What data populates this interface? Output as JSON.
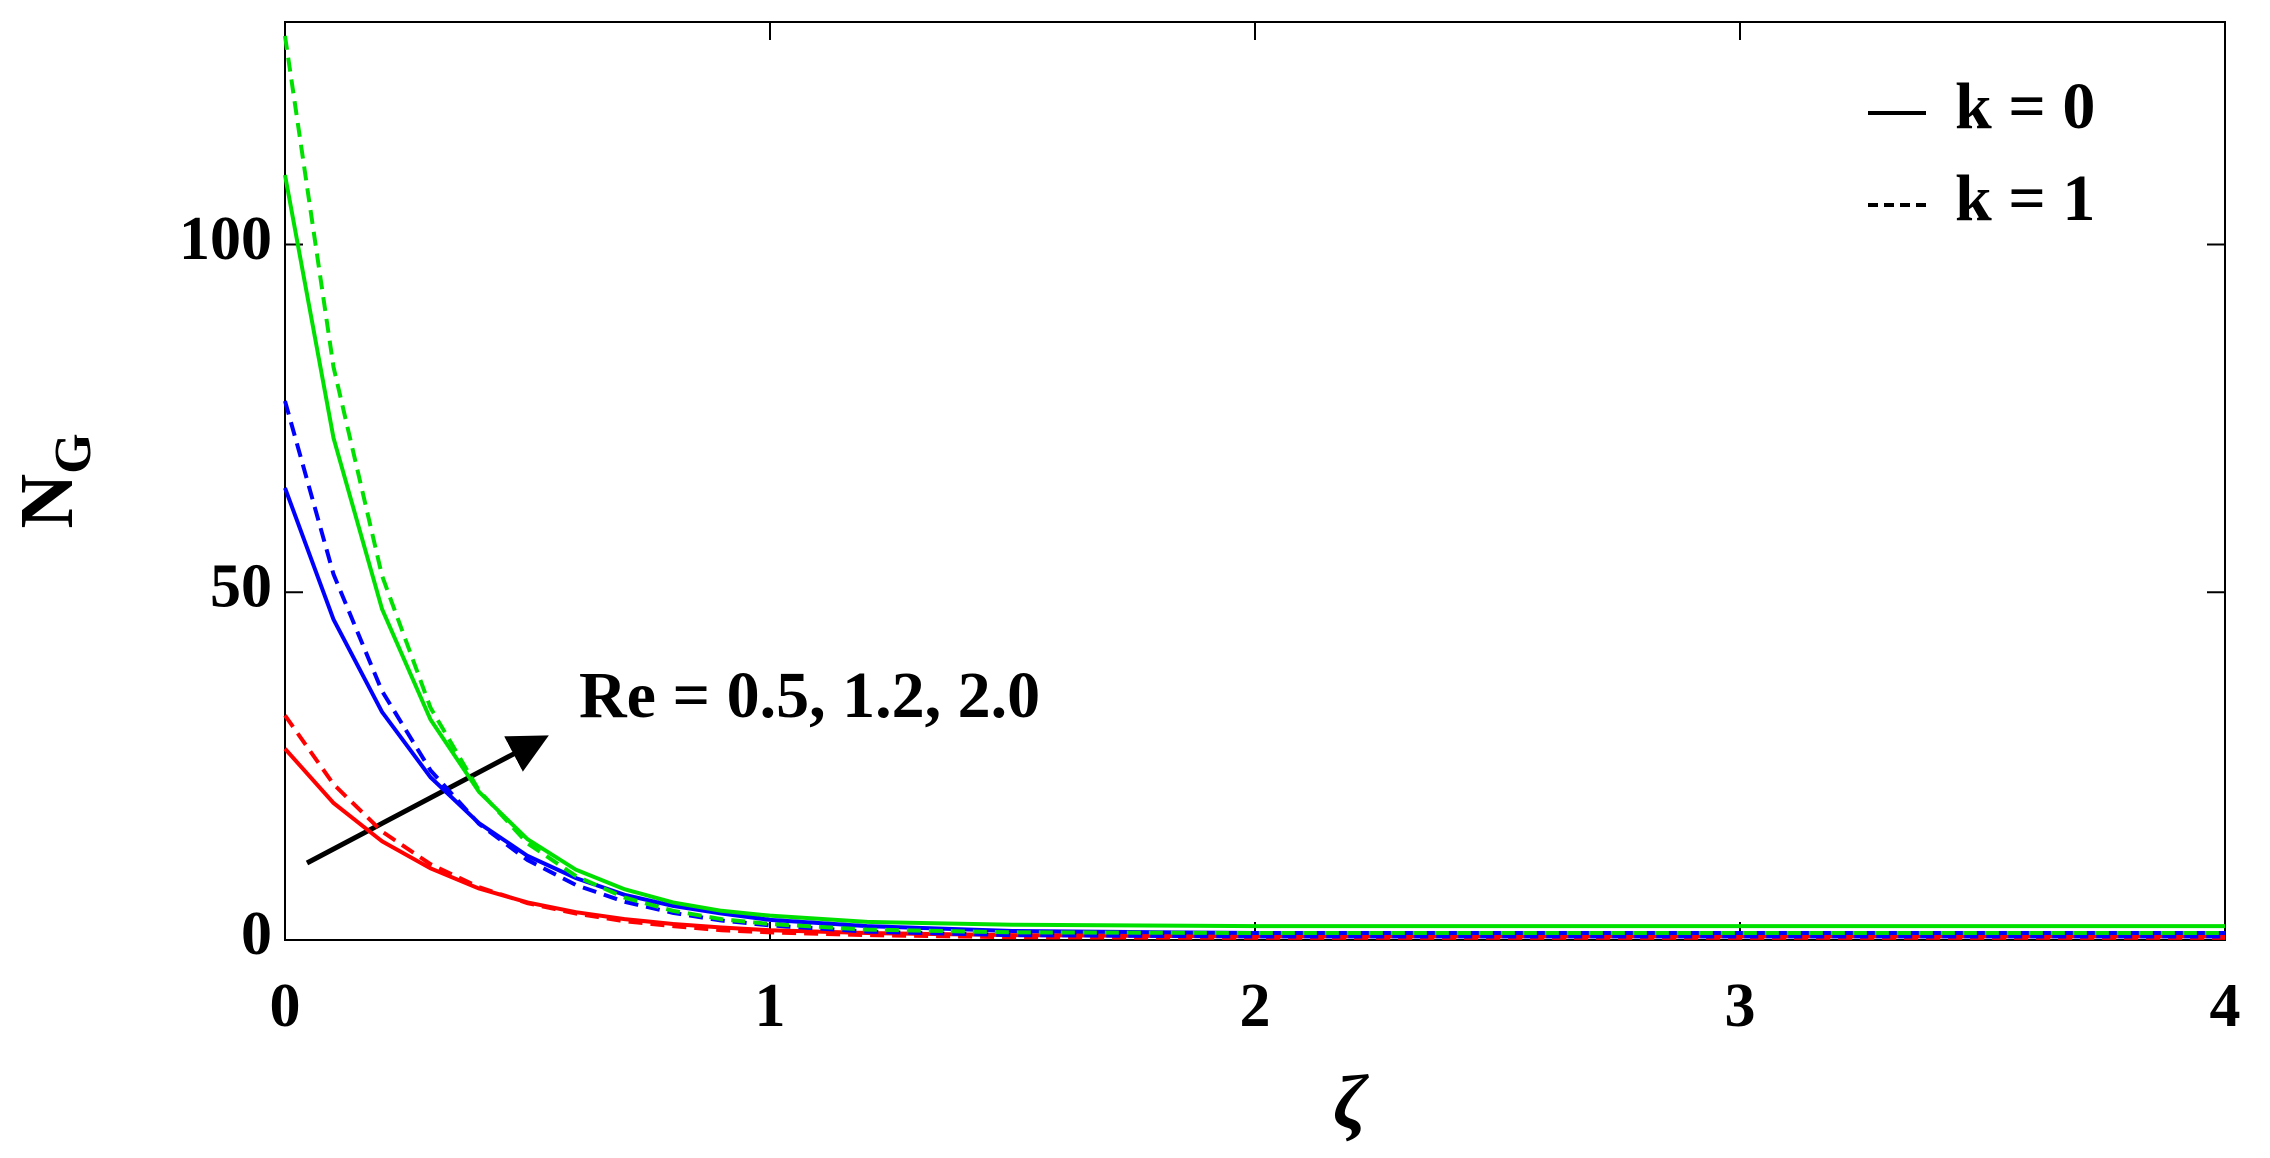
{
  "chart_data": {
    "type": "line",
    "x": [
      0,
      0.1,
      0.2,
      0.3,
      0.4,
      0.5,
      0.6,
      0.7,
      0.8,
      0.9,
      1.0,
      1.2,
      1.5,
      2,
      3,
      4
    ],
    "series": [
      {
        "color": "#ff0000",
        "dash": "solid",
        "values": [
          27.5,
          19.7,
          14.2,
          10.3,
          7.4,
          5.4,
          4.0,
          3.0,
          2.3,
          1.8,
          1.4,
          1.0,
          0.7,
          0.5,
          0.5,
          0.5
        ]
      },
      {
        "color": "#ff0000",
        "dash": "dashed",
        "values": [
          32.3,
          22.4,
          15.6,
          10.9,
          7.6,
          5.3,
          3.8,
          2.7,
          2.0,
          1.4,
          1.1,
          0.7,
          0.4,
          0.3,
          0.3,
          0.3
        ]
      },
      {
        "color": "#0000ff",
        "dash": "solid",
        "values": [
          65,
          46.1,
          32.8,
          23.4,
          16.8,
          12.1,
          8.9,
          6.5,
          4.9,
          3.8,
          2.9,
          2.0,
          1.3,
          1.0,
          1.0,
          1.0
        ]
      },
      {
        "color": "#0000ff",
        "dash": "dashed",
        "values": [
          77.5,
          52.6,
          35.8,
          24.4,
          16.7,
          11.5,
          7.9,
          5.5,
          3.9,
          2.8,
          2.1,
          1.2,
          0.7,
          0.5,
          0.5,
          0.5
        ]
      },
      {
        "color": "#00e000",
        "dash": "solid",
        "values": [
          110,
          72.2,
          47.6,
          31.7,
          21.3,
          14.5,
          10.1,
          7.3,
          5.4,
          4.2,
          3.5,
          2.6,
          2.2,
          2.0,
          2.0,
          2.0
        ]
      },
      {
        "color": "#00e000",
        "dash": "dashed",
        "values": [
          130,
          82.4,
          52.4,
          33.4,
          21.5,
          13.9,
          9.2,
          6.1,
          4.2,
          3.0,
          2.3,
          1.5,
          1.1,
          1.0,
          1.0,
          1.0
        ]
      }
    ],
    "xlim": [
      0,
      4
    ],
    "ylim": [
      0,
      132
    ],
    "xticks": [
      0,
      1,
      2,
      3,
      4
    ],
    "yticks": [
      0,
      50,
      100
    ],
    "xlabel": "ζ",
    "ylabel": {
      "main": "N",
      "subscript": "G"
    },
    "legend": [
      {
        "label": "k = 0",
        "dash": "solid"
      },
      {
        "label": "k = 1",
        "dash": "dashed"
      }
    ],
    "annotation": "Re = 0.5, 1.2, 2.0"
  }
}
